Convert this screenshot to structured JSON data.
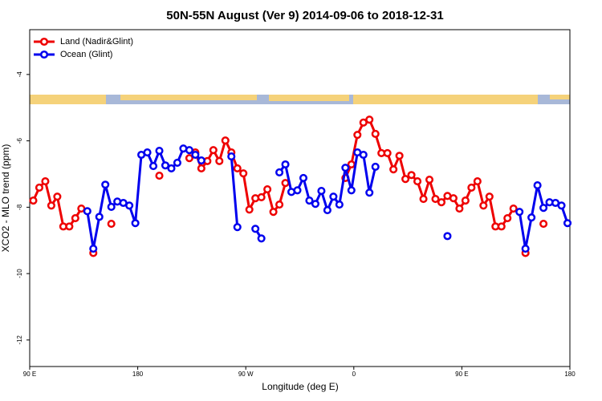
{
  "chart_data": {
    "type": "line",
    "title": "50N-55N August (Ver 9)   2014-09-06 to 2018-12-31",
    "x_label": "Longitude (deg E)",
    "y_label": "XCO2 - MLO trend (ppm)",
    "x": [
      93,
      98,
      103,
      108,
      113,
      118,
      123,
      128,
      133,
      138,
      143,
      148,
      153,
      158,
      163,
      168,
      173,
      178,
      183,
      188,
      193,
      198,
      203,
      208,
      213,
      218,
      223,
      228,
      233,
      238,
      243,
      248,
      253,
      258,
      263,
      268,
      273,
      278,
      283,
      288,
      293,
      298,
      303,
      308,
      313,
      318,
      323,
      328,
      333,
      338,
      343,
      348,
      353,
      358,
      363,
      368,
      373,
      378,
      383,
      388,
      393,
      398,
      403,
      408,
      413,
      418,
      423,
      428,
      433,
      438,
      443,
      448,
      453,
      458,
      463,
      468,
      473,
      478,
      483,
      488,
      493,
      498,
      503,
      508,
      513,
      518,
      523,
      528,
      533,
      538
    ],
    "xlim": [
      90,
      540
    ],
    "xticks": [
      {
        "value": 90,
        "label": "90 E"
      },
      {
        "value": 180,
        "label": "180"
      },
      {
        "value": 270,
        "label": "90 W"
      },
      {
        "value": 360,
        "label": "0"
      },
      {
        "value": 450,
        "label": "90 E"
      },
      {
        "value": 540,
        "label": "180"
      }
    ],
    "ylim": [
      -12.8,
      -2.65
    ],
    "yticks": [
      -12,
      -10,
      -8,
      -6,
      -4
    ],
    "legend": "top-left",
    "series": [
      {
        "name": "Land (Nadir&Glint)",
        "color": "#ee0000",
        "values": [
          -7.8,
          -7.41,
          -7.22,
          -7.95,
          -7.68,
          -8.58,
          -8.58,
          -8.33,
          -8.04,
          null,
          -9.38,
          null,
          null,
          -8.5,
          null,
          null,
          null,
          null,
          null,
          null,
          null,
          -7.05,
          null,
          null,
          null,
          null,
          -6.52,
          -6.35,
          -6.83,
          -6.61,
          -6.28,
          -6.61,
          -5.99,
          -6.35,
          -6.83,
          -6.98,
          -8.07,
          -7.73,
          -7.7,
          -7.46,
          -8.14,
          -7.92,
          -7.27,
          null,
          null,
          null,
          null,
          null,
          null,
          null,
          null,
          null,
          -7.12,
          -6.71,
          -5.82,
          -5.45,
          -5.36,
          -5.79,
          -6.37,
          -6.37,
          -6.86,
          -6.45,
          -7.15,
          -7.03,
          -7.22,
          -7.75,
          -7.17,
          -7.75,
          -7.85,
          -7.66,
          -7.73,
          -8.04,
          -7.8,
          -7.41,
          -7.22,
          -7.95,
          -7.68,
          -8.58,
          -8.58,
          -8.33,
          -8.04,
          null,
          -9.38,
          null,
          null,
          -8.5,
          null,
          null,
          null,
          null
        ]
      },
      {
        "name": "Ocean (Glint)",
        "color": "#0000ee",
        "values": [
          null,
          null,
          null,
          null,
          null,
          null,
          null,
          null,
          null,
          -8.12,
          -9.25,
          -8.29,
          -7.32,
          -7.99,
          -7.83,
          -7.87,
          -7.95,
          -8.48,
          -6.42,
          -6.35,
          -6.76,
          -6.3,
          -6.74,
          -6.83,
          -6.66,
          -6.23,
          -6.28,
          -6.42,
          -6.59,
          null,
          null,
          null,
          null,
          -6.47,
          -8.6,
          null,
          null,
          -8.65,
          -8.94,
          null,
          null,
          -6.95,
          -6.71,
          -7.54,
          -7.49,
          -7.12,
          -7.8,
          -7.9,
          -7.51,
          -8.09,
          -7.68,
          -7.92,
          -6.81,
          -7.49,
          -6.35,
          -6.42,
          -7.56,
          -6.78,
          null,
          null,
          null,
          null,
          null,
          null,
          null,
          null,
          null,
          null,
          null,
          -8.87,
          null,
          null,
          null,
          null,
          null,
          null,
          null,
          null,
          null,
          null,
          null,
          -8.14,
          -9.25,
          -8.31,
          -7.34,
          -8.02,
          -7.85,
          -7.87,
          -7.95,
          -8.48
        ]
      }
    ]
  }
}
